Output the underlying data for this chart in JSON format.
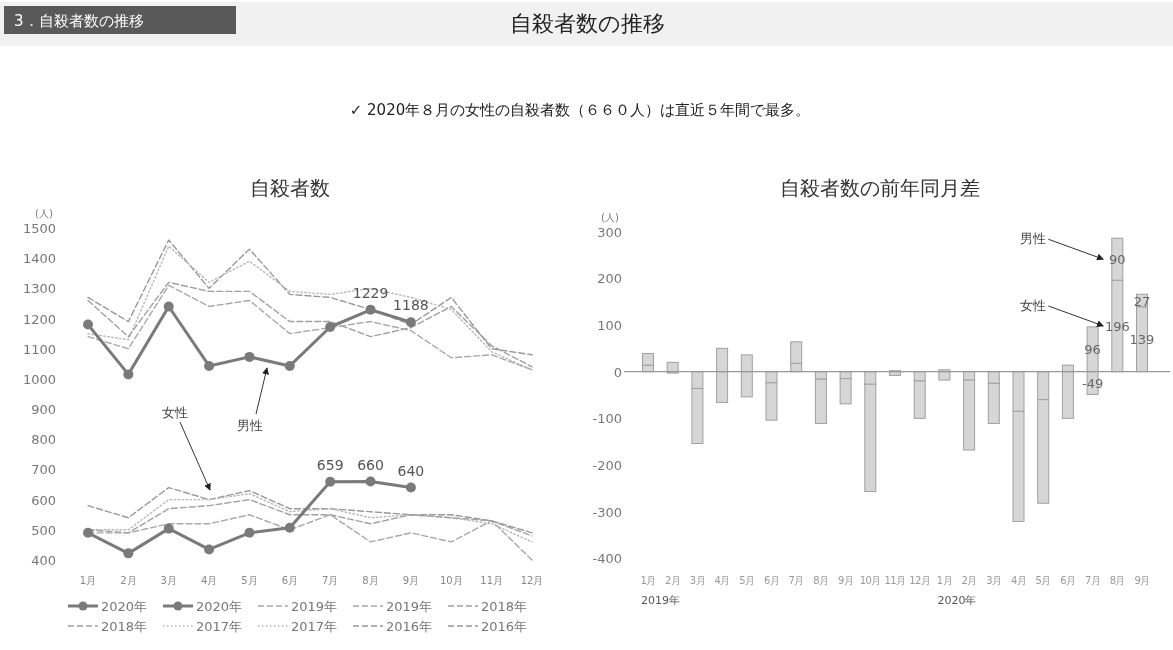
{
  "chart_data": [
    {
      "type": "other",
      "title": "自殺者数の推移",
      "subtitle": "✓ 2020年８月の女性の自殺者数（６６０人）は直近５年間で最多。",
      "annotations": [
        "3．自殺者数の推移"
      ]
    },
    {
      "type": "line",
      "title": "自殺者数",
      "ylabel": "(人)",
      "categories": [
        "1月",
        "2月",
        "3月",
        "4月",
        "5月",
        "6月",
        "7月",
        "8月",
        "9月",
        "10月",
        "11月",
        "12月"
      ],
      "ylim": [
        400,
        1500
      ],
      "yticks": [
        400,
        500,
        600,
        700,
        800,
        900,
        1000,
        1100,
        1200,
        1300,
        1400,
        1500
      ],
      "legend": "bottom",
      "series": [
        {
          "name": "2020年",
          "color": "#7a7a7a",
          "marker": "circle",
          "line_style": "solid",
          "values": [
            1180,
            1015,
            1240,
            1043,
            1073,
            1043,
            1172,
            1229,
            1188,
            null,
            null,
            null
          ],
          "value_labels": [
            null,
            null,
            null,
            null,
            null,
            null,
            null,
            "1229",
            "1188",
            null,
            null,
            null
          ]
        },
        {
          "name": "2020年",
          "color": "#7a7a7a",
          "marker": "circle",
          "line_style": "solid",
          "values": [
            490,
            422,
            504,
            435,
            490,
            507,
            659,
            660,
            640,
            null,
            null,
            null
          ],
          "value_labels": [
            null,
            null,
            null,
            null,
            null,
            null,
            "659",
            "660",
            "640",
            null,
            null,
            null
          ]
        },
        {
          "name": "2019年",
          "color": "#a8a8a8",
          "marker": "none",
          "line_style": "dashed",
          "values": [
            1140,
            1100,
            1310,
            1240,
            1260,
            1150,
            1170,
            1190,
            1160,
            1070,
            1080,
            1030
          ]
        },
        {
          "name": "2019年",
          "color": "#a8a8a8",
          "marker": "none",
          "line_style": "dashed",
          "values": [
            490,
            490,
            520,
            520,
            550,
            500,
            550,
            460,
            490,
            460,
            530,
            400
          ]
        },
        {
          "name": "2018年",
          "color": "#a0a0a0",
          "marker": "none",
          "line_style": "dashed",
          "values": [
            1260,
            1140,
            1320,
            1290,
            1290,
            1190,
            1190,
            1140,
            1170,
            1240,
            1110,
            1040
          ]
        },
        {
          "name": "2018年",
          "color": "#a0a0a0",
          "marker": "none",
          "line_style": "dashed",
          "values": [
            500,
            490,
            570,
            580,
            600,
            550,
            550,
            520,
            550,
            540,
            530,
            480
          ]
        },
        {
          "name": "2017年",
          "color": "#b8b8b8",
          "marker": "none",
          "line_style": "dotted",
          "values": [
            1150,
            1130,
            1440,
            1320,
            1390,
            1290,
            1280,
            1300,
            1270,
            1230,
            1090,
            1030
          ]
        },
        {
          "name": "2017年",
          "color": "#b8b8b8",
          "marker": "none",
          "line_style": "dotted",
          "values": [
            500,
            500,
            600,
            600,
            620,
            560,
            570,
            540,
            550,
            540,
            520,
            460
          ]
        },
        {
          "name": "2016年",
          "color": "#989898",
          "marker": "none",
          "line_style": "dashed",
          "values": [
            1270,
            1190,
            1460,
            1300,
            1430,
            1280,
            1270,
            1230,
            1180,
            1270,
            1100,
            1080
          ]
        },
        {
          "name": "2016年",
          "color": "#989898",
          "marker": "none",
          "line_style": "dashed",
          "values": [
            580,
            540,
            640,
            600,
            630,
            570,
            570,
            560,
            550,
            550,
            530,
            490
          ]
        }
      ],
      "annotations": [
        "男性",
        "女性"
      ]
    },
    {
      "type": "bar",
      "stacked": true,
      "title": "自殺者数の前年同月差",
      "ylabel": "(人)",
      "categories": [
        "1月",
        "2月",
        "3月",
        "4月",
        "5月",
        "6月",
        "7月",
        "8月",
        "9月",
        "10月",
        "11月",
        "12月",
        "1月",
        "2月",
        "3月",
        "4月",
        "5月",
        "6月",
        "7月",
        "8月",
        "9月"
      ],
      "ylim": [
        -400,
        300
      ],
      "yticks": [
        -400,
        -300,
        -200,
        -100,
        0,
        100,
        200,
        300
      ],
      "series": [
        {
          "name": "女性",
          "color": "#d6d6d6",
          "values": [
            14,
            -3,
            -36,
            50,
            36,
            -24,
            18,
            -16,
            -15,
            -27,
            2,
            -20,
            4,
            -18,
            -25,
            -85,
            -60,
            14,
            96,
            196,
            139
          ],
          "value_labels": [
            null,
            null,
            null,
            null,
            null,
            null,
            null,
            null,
            null,
            null,
            null,
            null,
            null,
            null,
            null,
            null,
            null,
            null,
            "96",
            "196",
            "139"
          ]
        },
        {
          "name": "男性",
          "color": "#d6d6d6",
          "values": [
            25,
            20,
            -118,
            -66,
            -54,
            -80,
            46,
            -95,
            -54,
            -230,
            -8,
            -80,
            -18,
            -150,
            -86,
            -236,
            -222,
            -100,
            -49,
            90,
            27
          ],
          "value_labels": [
            null,
            null,
            null,
            null,
            null,
            null,
            null,
            null,
            null,
            null,
            null,
            null,
            null,
            null,
            null,
            null,
            null,
            null,
            "-49",
            "90",
            "27"
          ]
        }
      ],
      "annotations": [
        "2019年",
        "2020年"
      ]
    }
  ]
}
